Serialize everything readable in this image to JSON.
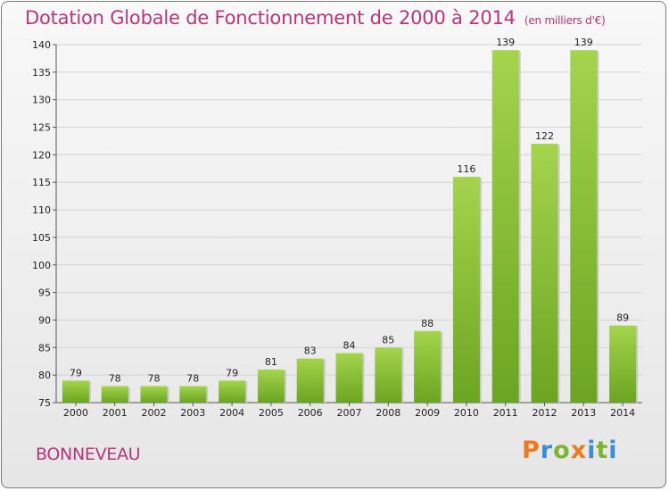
{
  "header": {
    "title": "Dotation Globale de Fonctionnement de 2000 à 2014",
    "unit": "(en milliers d'€)"
  },
  "footer": {
    "commune": "BONNEVEAU",
    "logo": "Proxiti"
  },
  "colors": {
    "title": "#b9357a",
    "bar_light": "#a4d44c",
    "bar_dark": "#6ba521"
  },
  "chart_data": {
    "type": "bar",
    "title": "Dotation Globale de Fonctionnement de 2000 à 2014",
    "categories": [
      "2000",
      "2001",
      "2002",
      "2003",
      "2004",
      "2005",
      "2006",
      "2007",
      "2008",
      "2009",
      "2010",
      "2011",
      "2012",
      "2013",
      "2014"
    ],
    "values": [
      79,
      78,
      78,
      78,
      79,
      81,
      83,
      84,
      85,
      88,
      116,
      139,
      122,
      139,
      89
    ],
    "ylim": [
      75,
      140
    ],
    "yticks": [
      75,
      80,
      85,
      90,
      95,
      100,
      105,
      110,
      115,
      120,
      125,
      130,
      135,
      140
    ],
    "grid": true
  }
}
